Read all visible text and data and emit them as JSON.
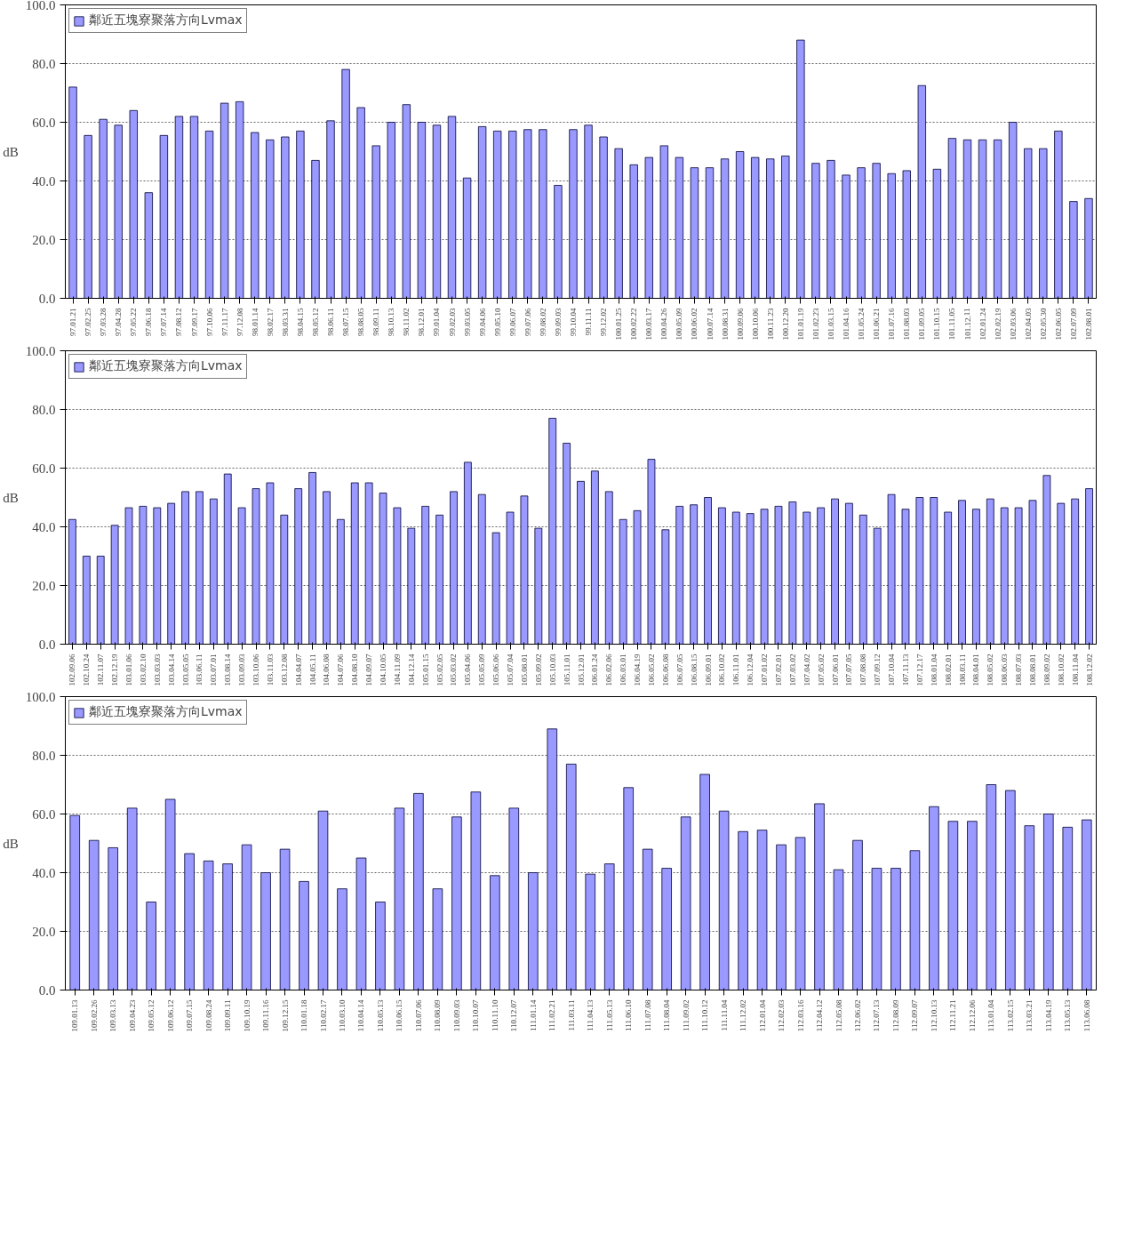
{
  "chart_data": [
    {
      "type": "bar",
      "ylabel": "dB",
      "ylim": [
        0,
        100
      ],
      "yticks": [
        {
          "value": 0,
          "label": "0.0"
        },
        {
          "value": 20,
          "label": "20.0"
        },
        {
          "value": 40,
          "label": "40.0"
        },
        {
          "value": 60,
          "label": "60.0"
        },
        {
          "value": 80,
          "label": "80.0"
        },
        {
          "value": 100,
          "label": "100.0"
        }
      ],
      "grid": "y",
      "legend": "top left",
      "categories": [
        "97.01.21",
        "97.02.25",
        "97.03.28",
        "97.04.28",
        "97.05.22",
        "97.06.18",
        "97.07.14",
        "97.08.12",
        "97.09.17",
        "97.10.06",
        "97.11.17",
        "97.12.08",
        "98.01.14",
        "98.02.17",
        "98.03.31",
        "98.04.15",
        "98.05.12",
        "98.06.11",
        "98.07.15",
        "98.08.05",
        "98.09.11",
        "98.10.13",
        "98.11.02",
        "98.12.01",
        "99.01.04",
        "99.02.03",
        "99.03.05",
        "99.04.06",
        "99.05.10",
        "99.06.07",
        "99.07.06",
        "99.08.02",
        "99.09.03",
        "99.10.04",
        "99.11.11",
        "99.12.02",
        "100.01.25",
        "100.02.22",
        "100.03.17",
        "100.04.26",
        "100.05.09",
        "100.06.02",
        "100.07.14",
        "100.08.31",
        "100.09.06",
        "100.10.06",
        "100.11.23",
        "100.12.20",
        "101.01.19",
        "101.02.23",
        "101.03.15",
        "101.04.16",
        "101.05.24",
        "101.06.21",
        "101.07.16",
        "101.08.03",
        "101.09.05",
        "101.10.15",
        "101.11.05",
        "101.12.11",
        "102.01.24",
        "102.02.19",
        "102.03.06",
        "102.04.03",
        "102.05.30",
        "102.06.05",
        "102.07.09",
        "102.08.01"
      ],
      "series": [
        {
          "name": "鄰近五塊寮聚落方向Lvmax",
          "color": "#9999ff",
          "values": [
            72,
            55.5,
            61,
            59,
            64,
            36,
            55.5,
            62,
            62,
            57,
            66.5,
            67,
            56.5,
            54,
            55,
            57,
            47,
            60.5,
            78,
            65,
            52,
            60,
            66,
            60,
            59,
            62,
            41,
            58.5,
            57,
            57,
            57.5,
            57.5,
            38.5,
            57.5,
            59,
            55,
            51,
            45.5,
            48,
            52,
            48,
            44.5,
            44.5,
            47.5,
            50,
            48,
            47.5,
            48.5,
            88,
            46,
            47,
            42,
            44.5,
            46,
            42.5,
            43.5,
            72.5,
            44,
            54.5,
            54,
            54,
            54,
            60,
            51,
            51,
            57,
            33,
            34
          ]
        }
      ]
    },
    {
      "type": "bar",
      "ylabel": "dB",
      "ylim": [
        0,
        100
      ],
      "yticks": [
        {
          "value": 0,
          "label": "0.0"
        },
        {
          "value": 20,
          "label": "20.0"
        },
        {
          "value": 40,
          "label": "40.0"
        },
        {
          "value": 60,
          "label": "60.0"
        },
        {
          "value": 80,
          "label": "80.0"
        },
        {
          "value": 100,
          "label": "100.0"
        }
      ],
      "grid": "y",
      "legend": "top left",
      "categories": [
        "102.09.06",
        "102.10.24",
        "102.11.07",
        "102.12.19",
        "103.01.06",
        "103.02.10",
        "103.03.03",
        "103.04.14",
        "103.05.05",
        "103.06.11",
        "103.07.01",
        "103.08.14",
        "103.09.03",
        "103.10.06",
        "103.11.03",
        "103.12.08",
        "104.04.07",
        "104.05.11",
        "104.06.08",
        "104.07.06",
        "104.08.10",
        "104.09.07",
        "104.10.05",
        "104.11.09",
        "104.12.14",
        "105.01.15",
        "105.02.05",
        "105.03.02",
        "105.04.06",
        "105.05.09",
        "105.06.06",
        "105.07.04",
        "105.08.01",
        "105.09.02",
        "105.10.03",
        "105.11.01",
        "105.12.01",
        "106.01.24",
        "106.02.06",
        "106.03.01",
        "106.04.19",
        "106.05.02",
        "106.06.08",
        "106.07.05",
        "106.08.15",
        "106.09.01",
        "106.10.02",
        "106.11.01",
        "106.12.04",
        "107.01.02",
        "107.02.01",
        "107.03.02",
        "107.04.02",
        "107.05.02",
        "107.06.01",
        "107.07.05",
        "107.08.08",
        "107.09.12",
        "107.10.04",
        "107.11.13",
        "107.12.17",
        "108.01.04",
        "108.02.01",
        "108.03.11",
        "108.04.01",
        "108.05.02",
        "108.06.03",
        "108.07.03",
        "108.08.01",
        "108.09.02",
        "108.10.02",
        "108.11.04",
        "108.12.02"
      ],
      "series": [
        {
          "name": "鄰近五塊寮聚落方向Lvmax",
          "color": "#9999ff",
          "values": [
            42.5,
            30,
            30,
            40.5,
            46.5,
            47,
            46.5,
            48,
            52,
            52,
            49.5,
            58,
            46.5,
            53,
            55,
            44,
            53,
            58.5,
            52,
            42.5,
            55,
            55,
            51.5,
            46.5,
            39.5,
            47,
            44,
            52,
            62,
            51,
            38,
            45,
            50.5,
            39.5,
            77,
            68.5,
            55.5,
            59,
            52,
            42.5,
            45.5,
            63,
            39,
            47,
            47.5,
            50,
            46.5,
            45,
            44.5,
            46,
            47,
            48.5,
            45,
            46.5,
            49.5,
            48,
            44,
            39.5,
            51,
            46,
            50,
            50,
            45,
            49,
            46,
            49.5,
            46.5,
            46.5,
            49,
            57.5,
            48,
            49.5,
            53
          ]
        }
      ]
    },
    {
      "type": "bar",
      "ylabel": "dB",
      "ylim": [
        0,
        100
      ],
      "yticks": [
        {
          "value": 0,
          "label": "0.0"
        },
        {
          "value": 20,
          "label": "20.0"
        },
        {
          "value": 40,
          "label": "40.0"
        },
        {
          "value": 60,
          "label": "60.0"
        },
        {
          "value": 80,
          "label": "80.0"
        },
        {
          "value": 100,
          "label": "100.0"
        }
      ],
      "grid": "y",
      "legend": "top left",
      "categories": [
        "109.01.13",
        "109.02.26",
        "109.03.13",
        "109.04.23",
        "109.05.12",
        "109.06.12",
        "109.07.15",
        "109.08.24",
        "109.09.11",
        "109.10.19",
        "109.11.16",
        "109.12.15",
        "110.01.18",
        "110.02.17",
        "110.03.10",
        "110.04.14",
        "110.05.13",
        "110.06.15",
        "110.07.06",
        "110.08.09",
        "110.09.03",
        "110.10.07",
        "110.11.10",
        "110.12.07",
        "111.01.14",
        "111.02.21",
        "111.03.11",
        "111.04.13",
        "111.05.13",
        "111.06.10",
        "111.07.08",
        "111.08.04",
        "111.09.02",
        "111.10.12",
        "111.11.04",
        "111.12.02",
        "112.01.04",
        "112.02.03",
        "112.03.16",
        "112.04.12",
        "112.05.08",
        "112.06.02",
        "112.07.13",
        "112.08.09",
        "112.09.07",
        "112.10.13",
        "112.11.21",
        "112.12.06",
        "113.01.04",
        "113.02.15",
        "113.03.21",
        "113.04.19",
        "113.05.13",
        "113.06.08"
      ],
      "series": [
        {
          "name": "鄰近五塊寮聚落方向Lvmax",
          "color": "#9999ff",
          "values": [
            59.5,
            51,
            48.5,
            62,
            30,
            65,
            46.5,
            44,
            43,
            49.5,
            40,
            48,
            37,
            61,
            34.5,
            45,
            30,
            62,
            67,
            34.5,
            59,
            67.5,
            39,
            62,
            40,
            89,
            77,
            39.5,
            43,
            69,
            48,
            41.5,
            59,
            73.5,
            61,
            54,
            54.5,
            49.5,
            52,
            63.5,
            41,
            51,
            41.5,
            41.5,
            47.5,
            62.5,
            57.5,
            57.5,
            70,
            68,
            56,
            60,
            55.5,
            58
          ]
        }
      ]
    }
  ]
}
